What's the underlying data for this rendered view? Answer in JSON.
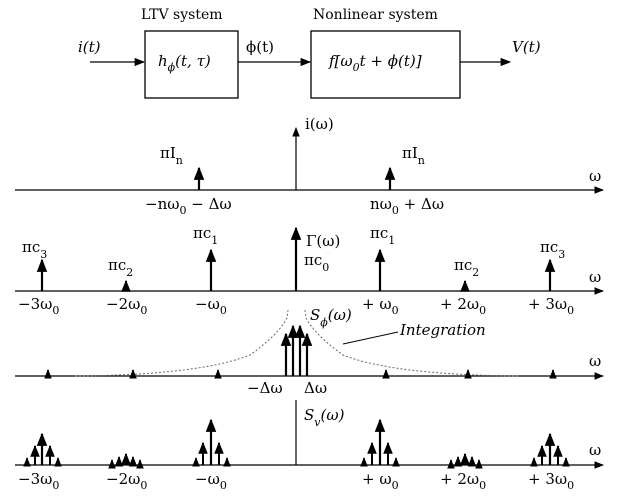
{
  "block_diagram": {
    "ltv_heading": "LTV system",
    "nonlinear_heading": "Nonlinear system",
    "input_signal": "i(t)",
    "ltv_block_label": "h",
    "ltv_block_sub": "ϕ",
    "ltv_block_args": "(t, τ)",
    "intermediate_signal": "ϕ(t)",
    "nonlinear_block_label": "f[ω",
    "nonlinear_block_sub": "0",
    "nonlinear_block_rest": "t + ϕ(t)]",
    "output_signal": "V(t)"
  },
  "axis_symbol": "ω",
  "panel_input": {
    "title": "i(ω)",
    "impulse_left_label": "πI",
    "impulse_left_sub": "n",
    "impulse_right_label": "πI",
    "impulse_right_sub": "n",
    "tick_left_main": "−nω",
    "tick_left_sub": "0",
    "tick_left_rest": " − Δω",
    "tick_right_main": "nω",
    "tick_right_sub": "0",
    "tick_right_rest": " + Δω"
  },
  "panel_gamma": {
    "title": "Γ(ω)",
    "c0_label": "πc",
    "c0_sub": "0",
    "c1_left_label": "πc",
    "c1_left_sub": "1",
    "c1_right_label": "πc",
    "c1_right_sub": "1",
    "c2_left_label": "πc",
    "c2_left_sub": "2",
    "c2_right_label": "πc",
    "c2_right_sub": "2",
    "c3_left_label": "πc",
    "c3_left_sub": "3",
    "c3_right_label": "πc",
    "c3_right_sub": "3",
    "ticks": [
      {
        "main": "−3ω",
        "sub": "0"
      },
      {
        "main": "−2ω",
        "sub": "0"
      },
      {
        "main": "−ω",
        "sub": "0"
      },
      {
        "main": "+ ω",
        "sub": "0"
      },
      {
        "main": "+ 2ω",
        "sub": "0"
      },
      {
        "main": "+ 3ω",
        "sub": "0"
      }
    ]
  },
  "panel_phase": {
    "title_main": "S",
    "title_sub": "ϕ",
    "title_rest": "(ω)",
    "annotation": "Integration",
    "tick_left": "−Δω",
    "tick_right": "Δω"
  },
  "panel_output": {
    "title_main": "S",
    "title_sub": "v",
    "title_rest": "(ω)",
    "ticks": [
      {
        "main": "−3ω",
        "sub": "0"
      },
      {
        "main": "−2ω",
        "sub": "0"
      },
      {
        "main": "−ω",
        "sub": "0"
      },
      {
        "main": "+ ω",
        "sub": "0"
      },
      {
        "main": "+ 2ω",
        "sub": "0"
      },
      {
        "main": "+ 3ω",
        "sub": "0"
      }
    ]
  }
}
